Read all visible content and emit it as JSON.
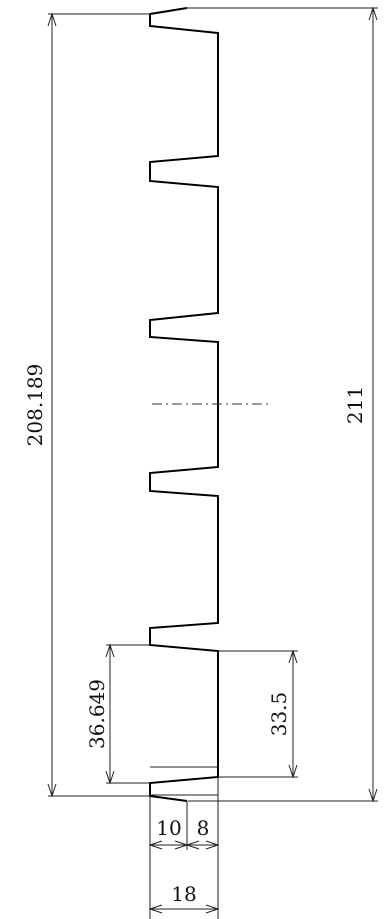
{
  "drawing": {
    "dimensions": {
      "overall_height": "211",
      "inner_height": "208.189",
      "pitch_outer": "36.649",
      "pitch_inner": "33.5",
      "width_flange": "10",
      "width_web": "8",
      "total_width": "18"
    }
  }
}
